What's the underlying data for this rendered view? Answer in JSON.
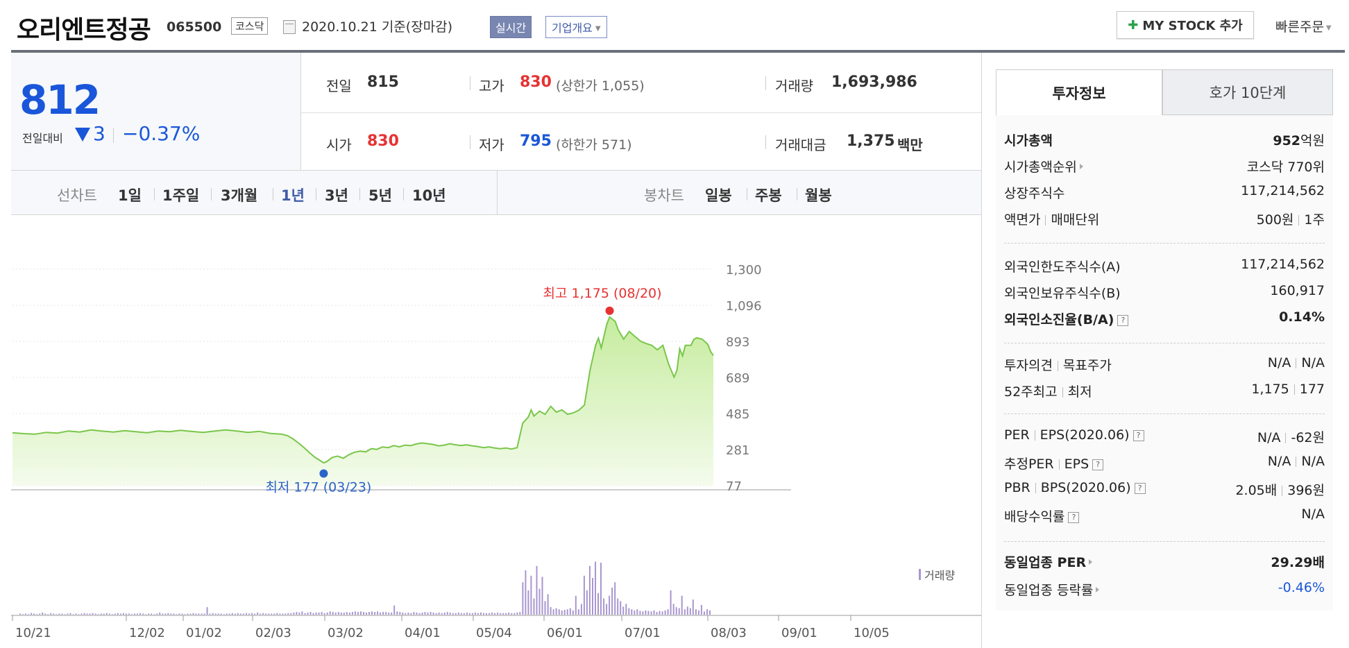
{
  "header": {
    "title": "오리엔트정공",
    "code": "065500",
    "market": "코스닥",
    "date_text": "2020.10.21  기준(장마감)",
    "realtime_label": "실시간",
    "company_label": "기업개요",
    "mystock_label": "MY STOCK 추가",
    "quick_order_label": "빠른주문"
  },
  "price": {
    "current": "812",
    "change_label": "전일대비",
    "change_value": "3",
    "change_rate": "−0.37%"
  },
  "summary": {
    "prev_label": "전일",
    "prev_value": "815",
    "high_label": "고가",
    "high_value": "830",
    "upper_limit": "(상한가 1,055)",
    "volume_label": "거래량",
    "volume_value": "1,693,986",
    "open_label": "시가",
    "open_value": "830",
    "low_label": "저가",
    "low_value": "795",
    "lower_limit": "(하한가 571)",
    "amount_label": "거래대금",
    "amount_value": "1,375",
    "amount_unit": "백만"
  },
  "period_tabs": {
    "line_label": "선차트",
    "line": [
      "1일",
      "1주일",
      "3개월",
      "1년",
      "3년",
      "5년",
      "10년"
    ],
    "active": "1년",
    "candle_label": "봉차트",
    "candle": [
      "일봉",
      "주봉",
      "월봉"
    ]
  },
  "chart_data": {
    "type": "area",
    "y_ticks": [
      "1,300",
      "1,096",
      "893",
      "689",
      "485",
      "281",
      "77"
    ],
    "ylim": [
      77,
      1300
    ],
    "x_ticks": [
      "10/21",
      "12/02",
      "01/02",
      "02/03",
      "03/02",
      "04/01",
      "05/04",
      "06/01",
      "07/01",
      "08/03",
      "09/01",
      "10/05"
    ],
    "high_annotation": "최고 1,175 (08/20)",
    "low_annotation": "최저 177 (03/23)",
    "volume_legend": "거래량",
    "colors": {
      "line": "#79c64a",
      "fill_top": "#c6ec9e",
      "fill_bottom": "#f4fbec",
      "high": "#e63232",
      "low": "#2a63c9",
      "volume": "#a896cf"
    },
    "x_range": [
      0,
      250
    ],
    "price_points": [
      [
        0,
        376
      ],
      [
        4,
        371
      ],
      [
        8,
        368
      ],
      [
        12,
        378
      ],
      [
        16,
        374
      ],
      [
        20,
        386
      ],
      [
        24,
        380
      ],
      [
        28,
        392
      ],
      [
        32,
        385
      ],
      [
        36,
        380
      ],
      [
        40,
        388
      ],
      [
        44,
        382
      ],
      [
        48,
        376
      ],
      [
        52,
        386
      ],
      [
        56,
        382
      ],
      [
        60,
        390
      ],
      [
        64,
        383
      ],
      [
        68,
        378
      ],
      [
        72,
        385
      ],
      [
        76,
        392
      ],
      [
        80,
        386
      ],
      [
        84,
        378
      ],
      [
        88,
        384
      ],
      [
        92,
        372
      ],
      [
        96,
        368
      ],
      [
        98,
        360
      ],
      [
        100,
        342
      ],
      [
        102,
        318
      ],
      [
        104,
        292
      ],
      [
        106,
        262
      ],
      [
        108,
        236
      ],
      [
        110,
        216
      ],
      [
        111,
        206
      ],
      [
        112,
        212
      ],
      [
        114,
        236
      ],
      [
        116,
        244
      ],
      [
        118,
        232
      ],
      [
        120,
        252
      ],
      [
        122,
        266
      ],
      [
        124,
        272
      ],
      [
        126,
        268
      ],
      [
        128,
        286
      ],
      [
        130,
        282
      ],
      [
        132,
        296
      ],
      [
        134,
        292
      ],
      [
        136,
        303
      ],
      [
        138,
        296
      ],
      [
        140,
        306
      ],
      [
        142,
        303
      ],
      [
        144,
        312
      ],
      [
        146,
        318
      ],
      [
        148,
        314
      ],
      [
        150,
        310
      ],
      [
        152,
        302
      ],
      [
        154,
        306
      ],
      [
        156,
        314
      ],
      [
        158,
        308
      ],
      [
        160,
        304
      ],
      [
        162,
        308
      ],
      [
        164,
        302
      ],
      [
        166,
        298
      ],
      [
        168,
        292
      ],
      [
        170,
        296
      ],
      [
        172,
        290
      ],
      [
        174,
        286
      ],
      [
        176,
        290
      ],
      [
        178,
        284
      ],
      [
        180,
        292
      ],
      [
        182,
        430
      ],
      [
        184,
        465
      ],
      [
        185,
        505
      ],
      [
        186,
        470
      ],
      [
        188,
        498
      ],
      [
        190,
        480
      ],
      [
        192,
        525
      ],
      [
        194,
        492
      ],
      [
        196,
        505
      ],
      [
        198,
        480
      ],
      [
        200,
        488
      ],
      [
        202,
        503
      ],
      [
        204,
        532
      ],
      [
        206,
        728
      ],
      [
        208,
        870
      ],
      [
        209,
        910
      ],
      [
        210,
        855
      ],
      [
        212,
        990
      ],
      [
        213,
        1030
      ],
      [
        215,
        1005
      ],
      [
        216,
        960
      ],
      [
        218,
        905
      ],
      [
        220,
        948
      ],
      [
        222,
        920
      ],
      [
        224,
        893
      ],
      [
        226,
        880
      ],
      [
        228,
        870
      ],
      [
        230,
        845
      ],
      [
        232,
        870
      ],
      [
        234,
        765
      ],
      [
        236,
        690
      ],
      [
        237,
        728
      ],
      [
        238,
        850
      ],
      [
        239,
        810
      ],
      [
        240,
        870
      ],
      [
        242,
        870
      ],
      [
        243,
        902
      ],
      [
        244,
        912
      ],
      [
        246,
        905
      ],
      [
        248,
        876
      ],
      [
        249,
        835
      ],
      [
        250,
        812
      ]
    ],
    "high_point": [
      213,
      1175
    ],
    "low_point": [
      111,
      177
    ],
    "volume": [
      0.02,
      0.01,
      0.02,
      0.01,
      0.03,
      0.02,
      0.01,
      0.02,
      0.04,
      0.02,
      0.01,
      0.03,
      0.02,
      0.01,
      0.02,
      0.02,
      0.01,
      0.02,
      0.03,
      0.01,
      0.02,
      0.01,
      0.02,
      0.03,
      0.02,
      0.02,
      0.03,
      0.02,
      0.01,
      0.02,
      0.02,
      0.03,
      0.02,
      0.01,
      0.02,
      0.03,
      0.02,
      0.03,
      0.02,
      0.02,
      0.01,
      0.02,
      0.02,
      0.03,
      0.02,
      0.01,
      0.02,
      0.02,
      0.01,
      0.02,
      0.04,
      0.02,
      0.02,
      0.03,
      0.02,
      0.02,
      0.01,
      0.02,
      0.02,
      0.01,
      0.02,
      0.02,
      0.03,
      0.02,
      0.02,
      0.02,
      0.02,
      0.14,
      0.02,
      0.03,
      0.02,
      0.02,
      0.02,
      0.01,
      0.02,
      0.02,
      0.03,
      0.02,
      0.03,
      0.02,
      0.02,
      0.03,
      0.02,
      0.03,
      0.02,
      0.04,
      0.02,
      0.03,
      0.02,
      0.02,
      0.02,
      0.02,
      0.03,
      0.02,
      0.02,
      0.02,
      0.03,
      0.03,
      0.04,
      0.05,
      0.04,
      0.06,
      0.03,
      0.04,
      0.05,
      0.03,
      0.04,
      0.04,
      0.05,
      0.03,
      0.04,
      0.06,
      0.05,
      0.04,
      0.05,
      0.04,
      0.04,
      0.05,
      0.04,
      0.05,
      0.06,
      0.05,
      0.06,
      0.05,
      0.04,
      0.05,
      0.06,
      0.05,
      0.06,
      0.04,
      0.05,
      0.05,
      0.04,
      0.04,
      0.17,
      0.06,
      0.05,
      0.04,
      0.03,
      0.04,
      0.03,
      0.05,
      0.04,
      0.03,
      0.04,
      0.05,
      0.04,
      0.05,
      0.04,
      0.03,
      0.04,
      0.03,
      0.04,
      0.05,
      0.04,
      0.03,
      0.03,
      0.04,
      0.03,
      0.03,
      0.04,
      0.03,
      0.03,
      0.04,
      0.03,
      0.04,
      0.03,
      0.03,
      0.03,
      0.04,
      0.03,
      0.04,
      0.03,
      0.03,
      0.03,
      0.04,
      0.03,
      0.03,
      0.04,
      0.05,
      0.6,
      0.82,
      0.45,
      0.72,
      0.3,
      0.9,
      0.48,
      0.7,
      0.25,
      0.38,
      0.14,
      0.1,
      0.12,
      0.1,
      0.08,
      0.09,
      0.1,
      0.12,
      0.08,
      0.35,
      0.1,
      0.2,
      0.72,
      0.45,
      0.9,
      0.68,
      0.98,
      0.4,
      0.96,
      0.3,
      0.2,
      0.35,
      0.5,
      0.6,
      0.3,
      0.25,
      0.15,
      0.2,
      0.12,
      0.1,
      0.08,
      0.1,
      0.07,
      0.06,
      0.08,
      0.07,
      0.06,
      0.08,
      0.05,
      0.07,
      0.06,
      0.08,
      0.1,
      0.45,
      0.2,
      0.14,
      0.12,
      0.35,
      0.1,
      0.15,
      0.12,
      0.28,
      0.1,
      0.08,
      0.18,
      0.06,
      0.1,
      0.08
    ]
  },
  "tabs": {
    "invest": "투자정보",
    "hoga": "호가 10단계"
  },
  "invest": {
    "mcap_label": "시가총액",
    "mcap_value": "952",
    "mcap_unit": "억원",
    "mcap_rank_label": "시가총액순위",
    "mcap_rank_value": "코스닥 770위",
    "shares_label": "상장주식수",
    "shares_value": "117,214,562",
    "par_label": "액면가",
    "trade_unit_label": "매매단위",
    "par_value": "500원",
    "trade_unit_value": "1주",
    "foreign_limit_label": "외국인한도주식수(A)",
    "foreign_limit_value": "117,214,562",
    "foreign_hold_label": "외국인보유주식수(B)",
    "foreign_hold_value": "160,917",
    "foreign_ratio_label": "외국인소진율(B/A)",
    "foreign_ratio_value": "0.14%",
    "opinion_label": "투자의견",
    "target_label": "목표주가",
    "opinion_value": "N/A",
    "target_value": "N/A",
    "w52_high_label": "52주최고",
    "w52_low_label": "최저",
    "w52_high_value": "1,175",
    "w52_low_value": "177",
    "per_label": "PER",
    "eps_label": "EPS(2020.06)",
    "per_value": "N/A",
    "eps_value": "-62원",
    "est_per_label": "추정PER",
    "est_eps_label": "EPS",
    "est_per_value": "N/A",
    "est_eps_value": "N/A",
    "pbr_label": "PBR",
    "bps_label": "BPS(2020.06)",
    "pbr_value": "2.05배",
    "bps_value": "396원",
    "div_label": "배당수익률",
    "div_value": "N/A",
    "sector_per_label": "동일업종 PER",
    "sector_per_value": "29.29배",
    "sector_rate_label": "동일업종 등락률",
    "sector_rate_value": "-0.46%",
    "help_icon_glyph": "?"
  }
}
